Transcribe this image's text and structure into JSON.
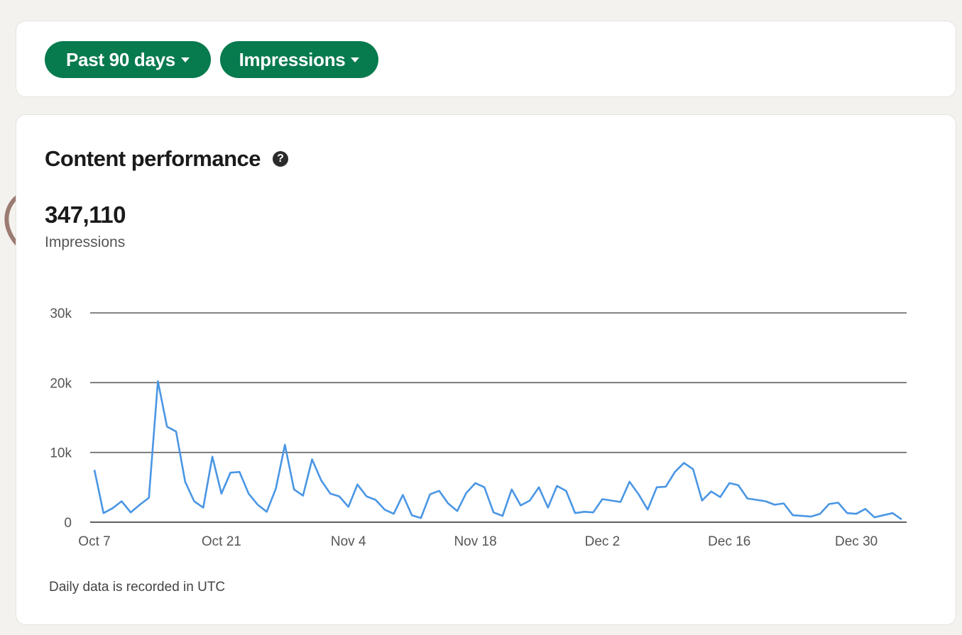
{
  "filters": {
    "range_label": "Past 90 days",
    "metric_label": "Impressions"
  },
  "panel": {
    "title": "Content performance",
    "help_icon": "question-circle-icon",
    "total_value": "347,110",
    "total_label": "Impressions",
    "footnote": "Daily data is recorded in UTC"
  },
  "colors": {
    "page_bg": "#f3f2ee",
    "pill_bg": "#077a4e",
    "line": "#4a96e4",
    "gridline": "#5f5f5f",
    "annotation": "#9b7b72"
  },
  "chart_data": {
    "type": "line",
    "title": "",
    "xlabel": "",
    "ylabel": "",
    "ylim": [
      0,
      30000
    ],
    "y_ticks": [
      "0",
      "10k",
      "20k",
      "30k"
    ],
    "y_tick_values": [
      0,
      10000,
      20000,
      30000
    ],
    "x_ticks": [
      "Oct 7",
      "Oct 21",
      "Nov 4",
      "Nov 18",
      "Dec 2",
      "Dec 16",
      "Dec 30"
    ],
    "x_tick_index": [
      0,
      14,
      28,
      42,
      56,
      70,
      84
    ],
    "grid": true,
    "legend": "none",
    "series": [
      {
        "values": [
          7500,
          1300,
          2000,
          3000,
          1400,
          2500,
          3500,
          20200,
          13700,
          13000,
          5800,
          3000,
          2100,
          9400,
          4100,
          7100,
          7200,
          4100,
          2500,
          1500,
          4800,
          11100,
          4700,
          3800,
          9000,
          6000,
          4100,
          3700,
          2200,
          5400,
          3700,
          3200,
          1800,
          1200,
          3900,
          1000,
          600,
          4000,
          4500,
          2700,
          1600,
          4200,
          5600,
          5000,
          1400,
          900,
          4700,
          2400,
          3100,
          5000,
          2100,
          5200,
          4500,
          1300,
          1500,
          1400,
          3300,
          3100,
          2900,
          5800,
          4000,
          1800,
          5000,
          5100,
          7200,
          8500,
          7600,
          3100,
          4400,
          3600,
          5600,
          5300,
          3400,
          3200,
          3000,
          2500,
          2700,
          1000,
          900,
          800,
          1200,
          2600,
          2800,
          1300,
          1200,
          1900,
          700,
          1000,
          1300,
          400
        ]
      }
    ]
  }
}
